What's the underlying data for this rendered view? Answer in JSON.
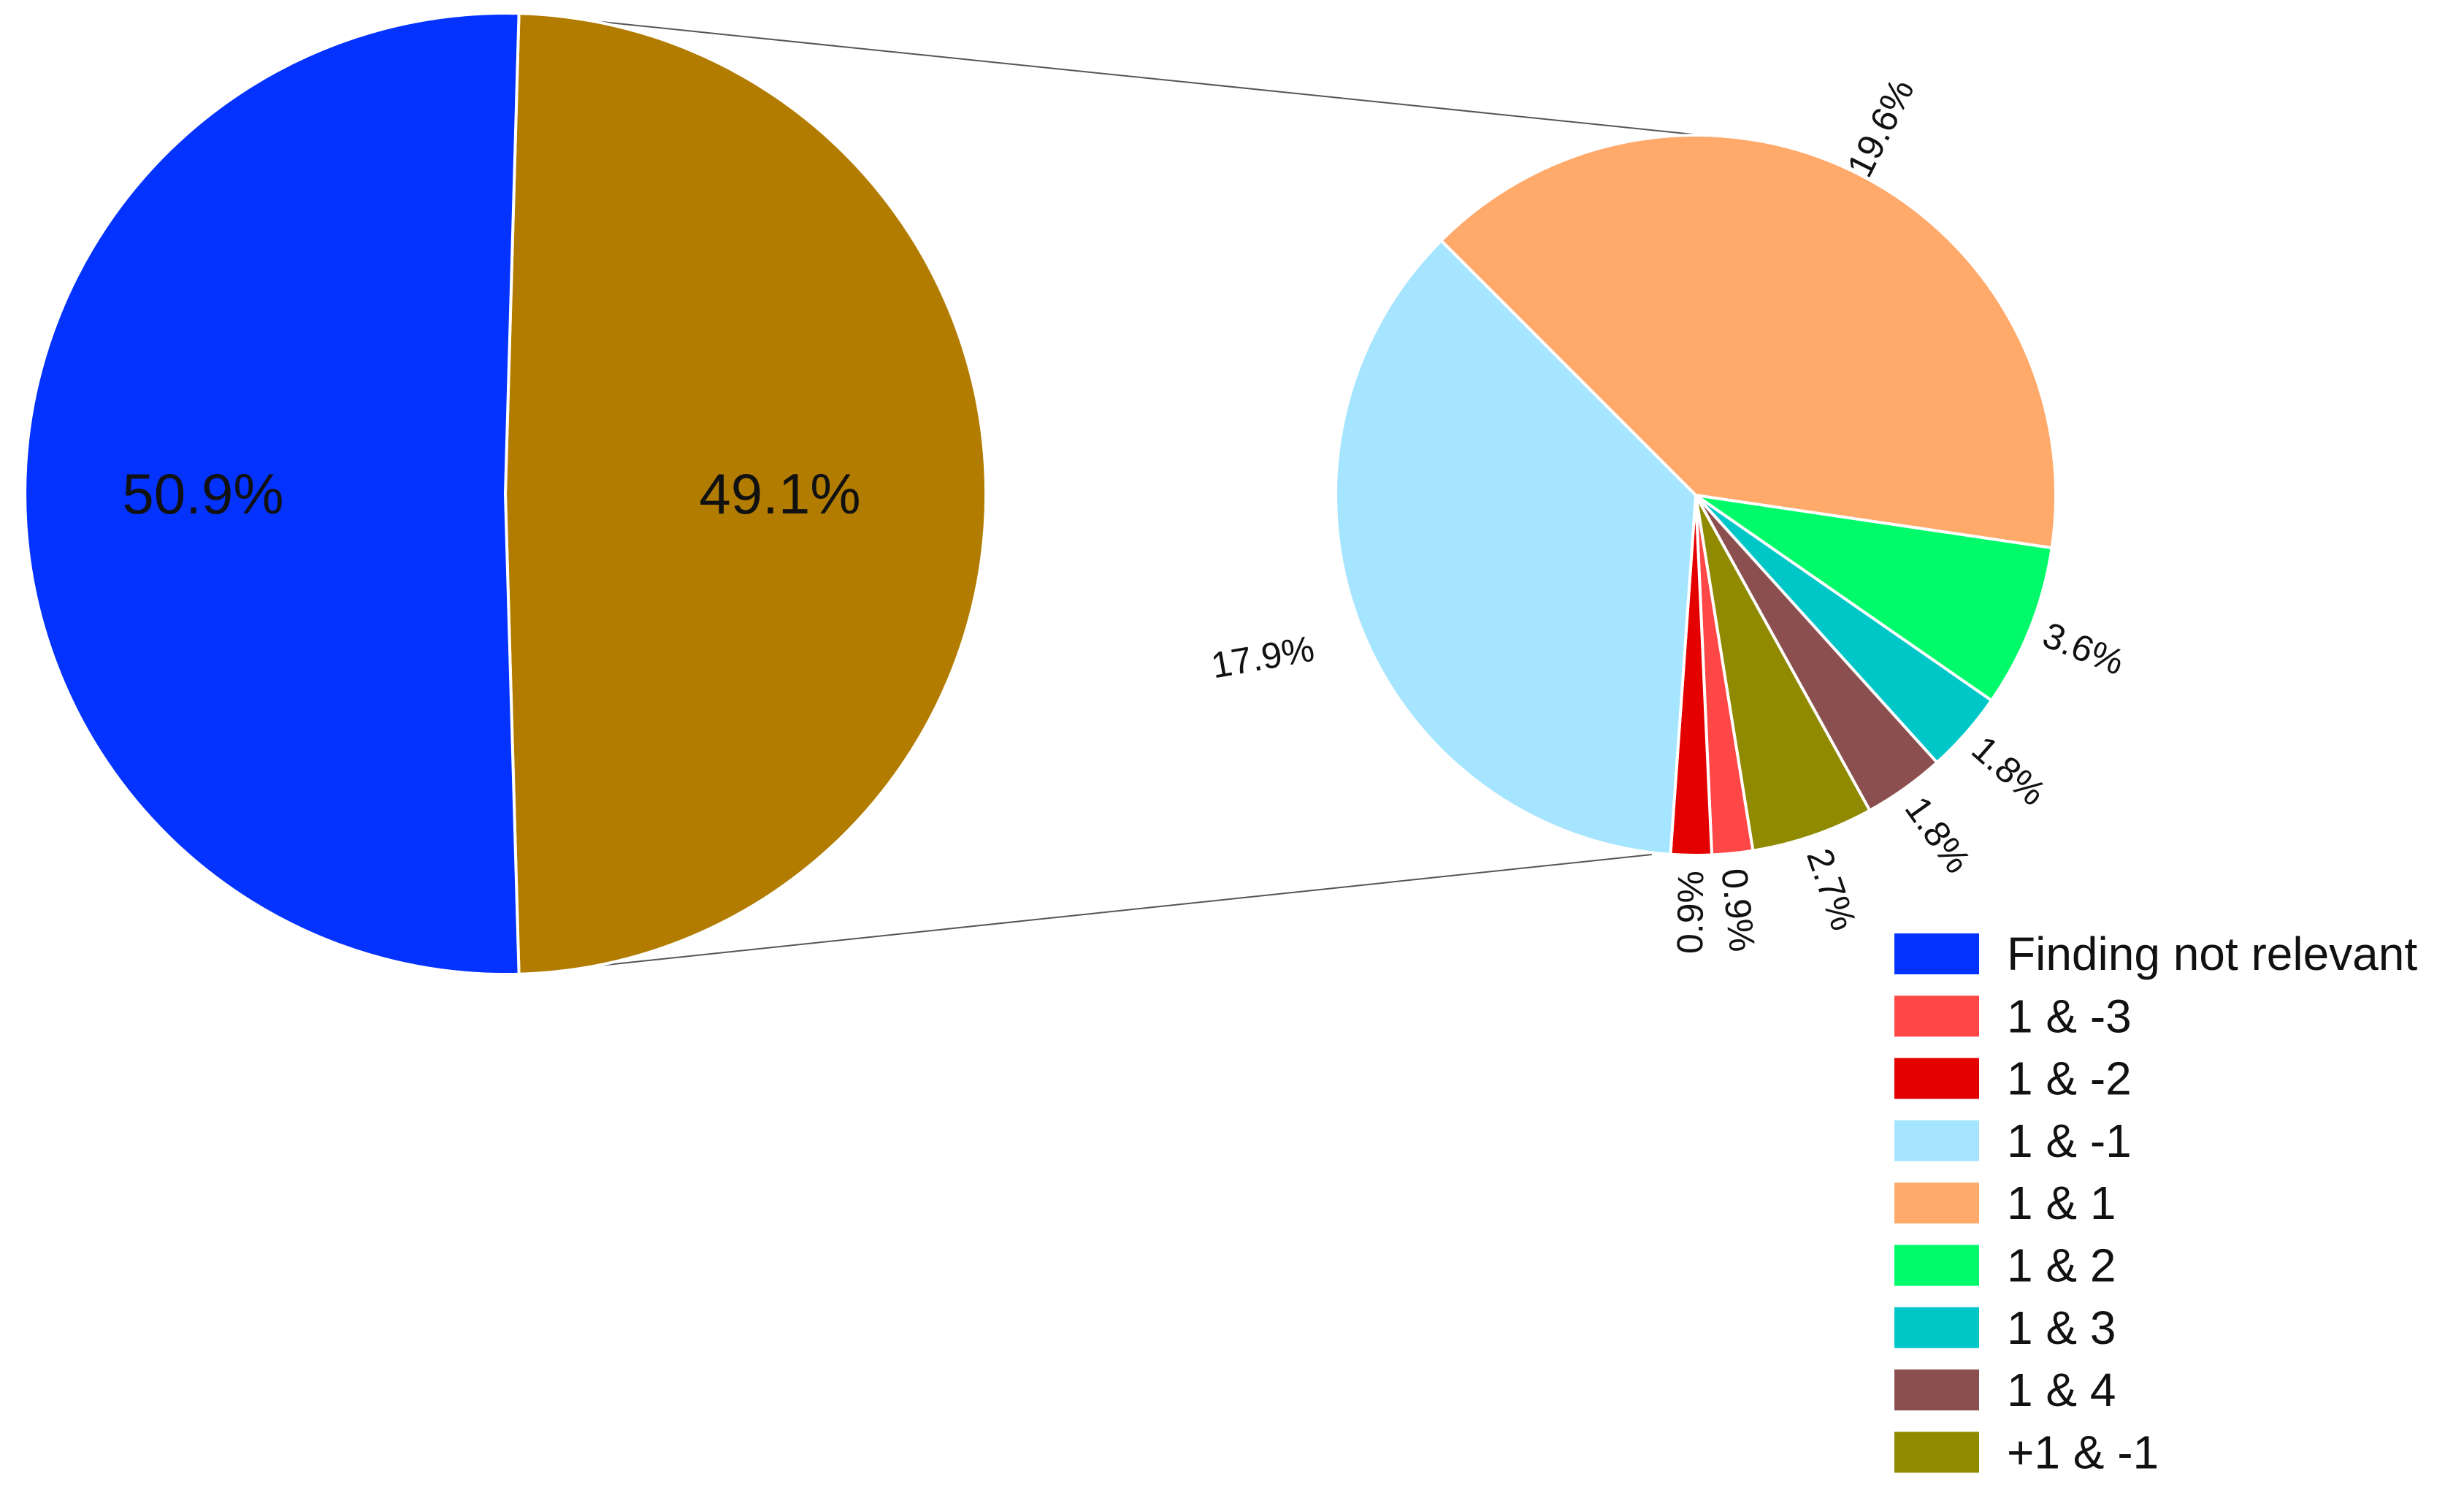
{
  "chart_data": {
    "type": "pie",
    "subtype": "pie-of-pie",
    "primary": {
      "slices": [
        {
          "key": "not_relevant",
          "label": "50.9%",
          "value": 50.9,
          "color": "#0433ff"
        },
        {
          "key": "relevant_group",
          "label": "49.1%",
          "value": 49.1,
          "color": "#b27c00"
        }
      ]
    },
    "secondary": {
      "slices": [
        {
          "key": "1_1",
          "label": "19.6%",
          "value": 19.6,
          "color": "#ffa96b"
        },
        {
          "key": "1_2",
          "label": "3.6%",
          "value": 3.6,
          "color": "#00fa69"
        },
        {
          "key": "1_3",
          "label": "1.8%",
          "value": 1.8,
          "color": "#00c7c7"
        },
        {
          "key": "1_4",
          "label": "1.8%",
          "value": 1.8,
          "color": "#8c4f4f"
        },
        {
          "key": "p1_m1",
          "label": "2.7%",
          "value": 2.7,
          "color": "#8f8a00"
        },
        {
          "key": "1_m3",
          "label": "0.9%",
          "value": 0.9,
          "color": "#ff4747"
        },
        {
          "key": "1_m2",
          "label": "0.9%",
          "value": 0.9,
          "color": "#e50000"
        },
        {
          "key": "1_m1",
          "label": "17.9%",
          "value": 17.9,
          "color": "#a6e5ff"
        }
      ]
    },
    "legend": {
      "position": "bottom-right",
      "items": [
        {
          "label": "Finding not relevant",
          "color": "#0433ff"
        },
        {
          "label": "1 & -3",
          "color": "#ff4747"
        },
        {
          "label": "1 & -2",
          "color": "#e50000"
        },
        {
          "label": "1 & -1",
          "color": "#a6e5ff"
        },
        {
          "label": "1 & 1",
          "color": "#ffa96b"
        },
        {
          "label": "1 & 2",
          "color": "#00fa69"
        },
        {
          "label": "1 & 3",
          "color": "#00c7c7"
        },
        {
          "label": "1 & 4",
          "color": "#8c4f4f"
        },
        {
          "label": "+1 & -1",
          "color": "#8f8a00"
        }
      ]
    }
  }
}
